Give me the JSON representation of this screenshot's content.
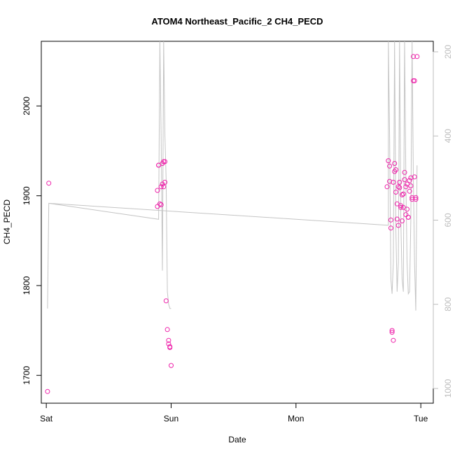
{
  "chart_data": {
    "type": "scatter",
    "title": "ATOM4 Northeast_Pacific_2 CH4_PECD",
    "xlabel": "Date",
    "ylabel": "CH4_PECD",
    "x_unit": "days since Sat 00:00",
    "xlim": [
      -0.04,
      3.1
    ],
    "ylim": [
      1669,
      2072
    ],
    "x_ticks": [
      {
        "value": 0,
        "label": "Sat"
      },
      {
        "value": 1,
        "label": "Sun"
      },
      {
        "value": 2,
        "label": "Mon"
      },
      {
        "value": 3,
        "label": "Tue"
      }
    ],
    "y_ticks": [
      1700,
      1800,
      1900,
      2000
    ],
    "y2_ticks": [
      200,
      400,
      600,
      800,
      1000
    ],
    "y2lim": [
      1035,
      175
    ],
    "y2_reversed": true,
    "colors": {
      "points": "#ee22aa",
      "line": "#c4c4c4",
      "right_axis": "#bdbdbd",
      "frame": "#000000"
    },
    "series": [
      {
        "kind": "points",
        "x": [
          0.01,
          0.02,
          0.89,
          0.89,
          0.9,
          0.9,
          0.91,
          0.92,
          0.92,
          0.93,
          0.93,
          0.94,
          0.94,
          0.95,
          0.95,
          0.96,
          0.97,
          0.98,
          0.98,
          0.99,
          0.99,
          1.0,
          2.73,
          2.74,
          2.75,
          2.75,
          2.76,
          2.76,
          2.77,
          2.77,
          2.78,
          2.78,
          2.79,
          2.79,
          2.8,
          2.8,
          2.81,
          2.81,
          2.82,
          2.82,
          2.83,
          2.83,
          2.84,
          2.84,
          2.85,
          2.85,
          2.86,
          2.86,
          2.87,
          2.87,
          2.88,
          2.88,
          2.89,
          2.89,
          2.9,
          2.9,
          2.91,
          2.91,
          2.92,
          2.92,
          2.93,
          2.93,
          2.94,
          2.94,
          2.95,
          2.95,
          2.96,
          2.96,
          2.97
        ],
        "y": [
          1682,
          1914,
          1888,
          1906,
          1934,
          1934,
          1891,
          1890,
          1910,
          1913,
          1936,
          1938,
          1910,
          1915,
          1938,
          1783,
          1751,
          1739,
          1735,
          1731,
          1732,
          1711,
          1910,
          1939,
          1916,
          1933,
          1873,
          1864,
          1748,
          1750,
          1739,
          1915,
          1927,
          1936,
          1929,
          1904,
          1891,
          1874,
          1867,
          1910,
          1909,
          1915,
          1889,
          1887,
          1901,
          1872,
          1887,
          1902,
          1926,
          1918,
          1879,
          1910,
          1885,
          1913,
          1876,
          1876,
          1917,
          1905,
          1911,
          1920,
          1898,
          1896,
          2028,
          2055,
          2028,
          1921,
          1898,
          1896,
          2055
        ]
      },
      {
        "kind": "line",
        "axis": "right",
        "x": [
          0.01,
          0.01,
          0.02,
          0.02,
          2.73,
          2.74,
          2.74,
          2.75,
          2.76,
          2.77,
          2.78,
          2.79,
          2.8,
          2.81,
          2.82,
          2.83,
          2.84,
          2.85,
          2.86,
          2.87,
          2.88,
          2.89,
          2.9,
          2.91,
          2.92,
          2.93,
          2.94,
          2.95,
          2.96,
          2.97
        ],
        "y": [
          810,
          810,
          560,
          560,
          612,
          612,
          175,
          400,
          740,
          775,
          700,
          175,
          620,
          770,
          700,
          175,
          600,
          740,
          770,
          175,
          500,
          700,
          775,
          770,
          600,
          175,
          500,
          700,
          815,
          470
        ]
      },
      {
        "kind": "line",
        "axis": "right",
        "x": [
          0.02,
          0.9,
          0.91,
          0.92,
          0.93,
          0.94,
          0.95,
          0.96,
          0.97,
          0.98,
          0.99,
          1.0
        ],
        "y": [
          560,
          598,
          175,
          400,
          720,
          175,
          400,
          500,
          770,
          800,
          810,
          810
        ]
      }
    ]
  }
}
